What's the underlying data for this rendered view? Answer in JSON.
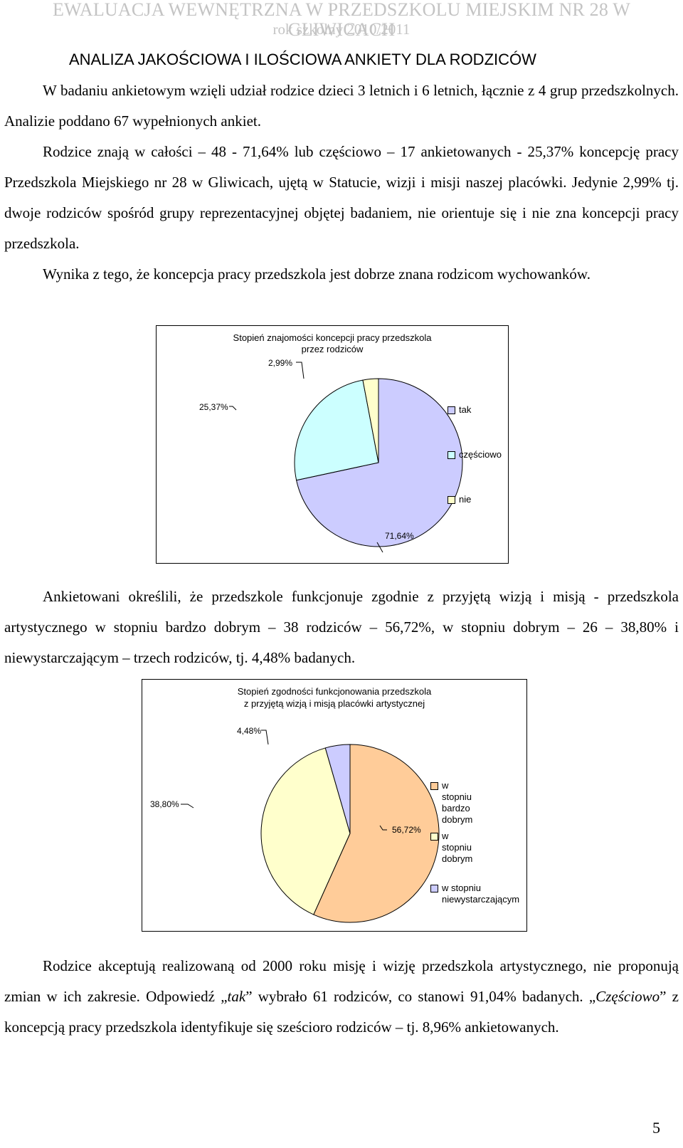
{
  "header": {
    "line1": "EWALUACJA WEWNĘTRZNA W PRZEDSZKOLU MIEJSKIM NR 28 W GLIWICACH",
    "line2": "rok szkolny 2010/2011"
  },
  "heading": "ANALIZA JAKOŚCIOWA I ILOŚCIOWA ANKIETY DLA RODZICÓW",
  "paragraphs": {
    "p1": "W badaniu ankietowym wzięli udział rodzice dzieci 3 letnich i 6 letnich, łącznie z 4 grup przedszkolnych. Analizie poddano 67 wypełnionych ankiet.",
    "p2": "Rodzice znają w całości – 48 - 71,64% lub częściowo – 17 ankietowanych - 25,37% koncepcję pracy Przedszkola Miejskiego nr 28 w Gliwicach, ujętą w Statucie, wizji i misji naszej placówki. Jedynie 2,99% tj. dwoje rodziców spośród grupy reprezentacyjnej objętej badaniem, nie orientuje się i nie zna koncepcji pracy przedszkola.",
    "p3": "Wynika z tego, że koncepcja pracy przedszkola jest dobrze znana rodzicom wychowanków.",
    "p4": "Ankietowani określili, że przedszkole funkcjonuje zgodnie z przyjętą wizją i misją - przedszkola artystycznego w stopniu bardzo dobrym – 38 rodziców – 56,72%, w stopniu dobrym – 26 – 38,80% i niewystarczającym – trzech rodziców, tj. 4,48% badanych.",
    "p5_a": "Rodzice akceptują realizowaną od 2000 roku misję i wizję przedszkola artystycznego, nie proponują zmian w ich zakresie. Odpowiedź „",
    "p5_tak": "tak",
    "p5_b": "” wybrało 61 rodziców, co stanowi 91,04% badanych. „",
    "p5_czesciowo": "Częściowo",
    "p5_c": "” z koncepcją pracy przedszkola identyfikuje się sześcioro rodziców – tj. 8,96% ankietowanych."
  },
  "chart_data": [
    {
      "type": "pie",
      "title": "Stopień znajomości koncepcji pracy przedszkola przez rodziców",
      "title_line1": "Stopień znajomości koncepcji pracy przedszkola",
      "title_line2": "przez rodziców",
      "categories": [
        "tak",
        "częściowo",
        "nie"
      ],
      "values": [
        71.64,
        25.37,
        2.99
      ],
      "value_labels": [
        "71,64%",
        "25,37%",
        "2,99%"
      ],
      "colors": [
        "#ccccff",
        "#ccffff",
        "#ffffcc"
      ],
      "legend_position": "right"
    },
    {
      "type": "pie",
      "title": "Stopień zgodności funkcjonowania przedszkola z przyjętą wizją i misją placówki artystycznej",
      "title_line1": "Stopień zgodności funkcjonowania przedszkola",
      "title_line2": "z przyjętą wizją i misją placówki artystycznej",
      "categories": [
        "w stopniu bardzo dobrym",
        "w stopniu dobrym",
        "w stopniu niewystarczającym"
      ],
      "legend_lines": [
        [
          "w stopniu bardzo",
          "dobrym"
        ],
        [
          "w stopniu dobrym"
        ],
        [
          "w stopniu",
          "niewystarczającym"
        ]
      ],
      "values": [
        56.72,
        38.8,
        4.48
      ],
      "value_labels": [
        "56,72%",
        "38,80%",
        "4,48%"
      ],
      "colors": [
        "#ffcc99",
        "#ffffcc",
        "#ccccff"
      ],
      "legend_position": "right"
    }
  ],
  "page_number": "5"
}
